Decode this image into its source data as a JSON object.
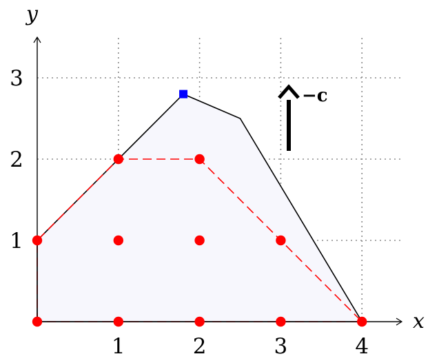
{
  "chart_data": {
    "type": "scatter",
    "xlabel": "x",
    "ylabel": "y",
    "xlim": [
      0,
      4.5
    ],
    "ylim": [
      0,
      3.5
    ],
    "x_ticks": [
      "1",
      "2",
      "3",
      "4"
    ],
    "y_ticks": [
      "1",
      "2",
      "3"
    ],
    "grid": "dotted",
    "feasible_region": {
      "vertices": [
        [
          0,
          0
        ],
        [
          0,
          1
        ],
        [
          1,
          2
        ],
        [
          1.8,
          2.8
        ],
        [
          2.5,
          2.5
        ],
        [
          4,
          0
        ]
      ],
      "fill": "#f7f7fd",
      "stroke": "#000000"
    },
    "integer_hull": {
      "vertices": [
        [
          0,
          0
        ],
        [
          0,
          1
        ],
        [
          1,
          2
        ],
        [
          2,
          2
        ],
        [
          4,
          0
        ]
      ],
      "stroke": "#ff0000",
      "style": "dashed"
    },
    "integer_points": {
      "color": "#ff0000",
      "points": [
        [
          0,
          0
        ],
        [
          1,
          0
        ],
        [
          2,
          0
        ],
        [
          3,
          0
        ],
        [
          4,
          0
        ],
        [
          0,
          1
        ],
        [
          1,
          1
        ],
        [
          2,
          1
        ],
        [
          3,
          1
        ],
        [
          1,
          2
        ],
        [
          2,
          2
        ]
      ]
    },
    "lp_optimum": {
      "point": [
        1.8,
        2.8
      ],
      "color": "#0000ff",
      "marker": "square"
    },
    "direction_label": "−c"
  }
}
